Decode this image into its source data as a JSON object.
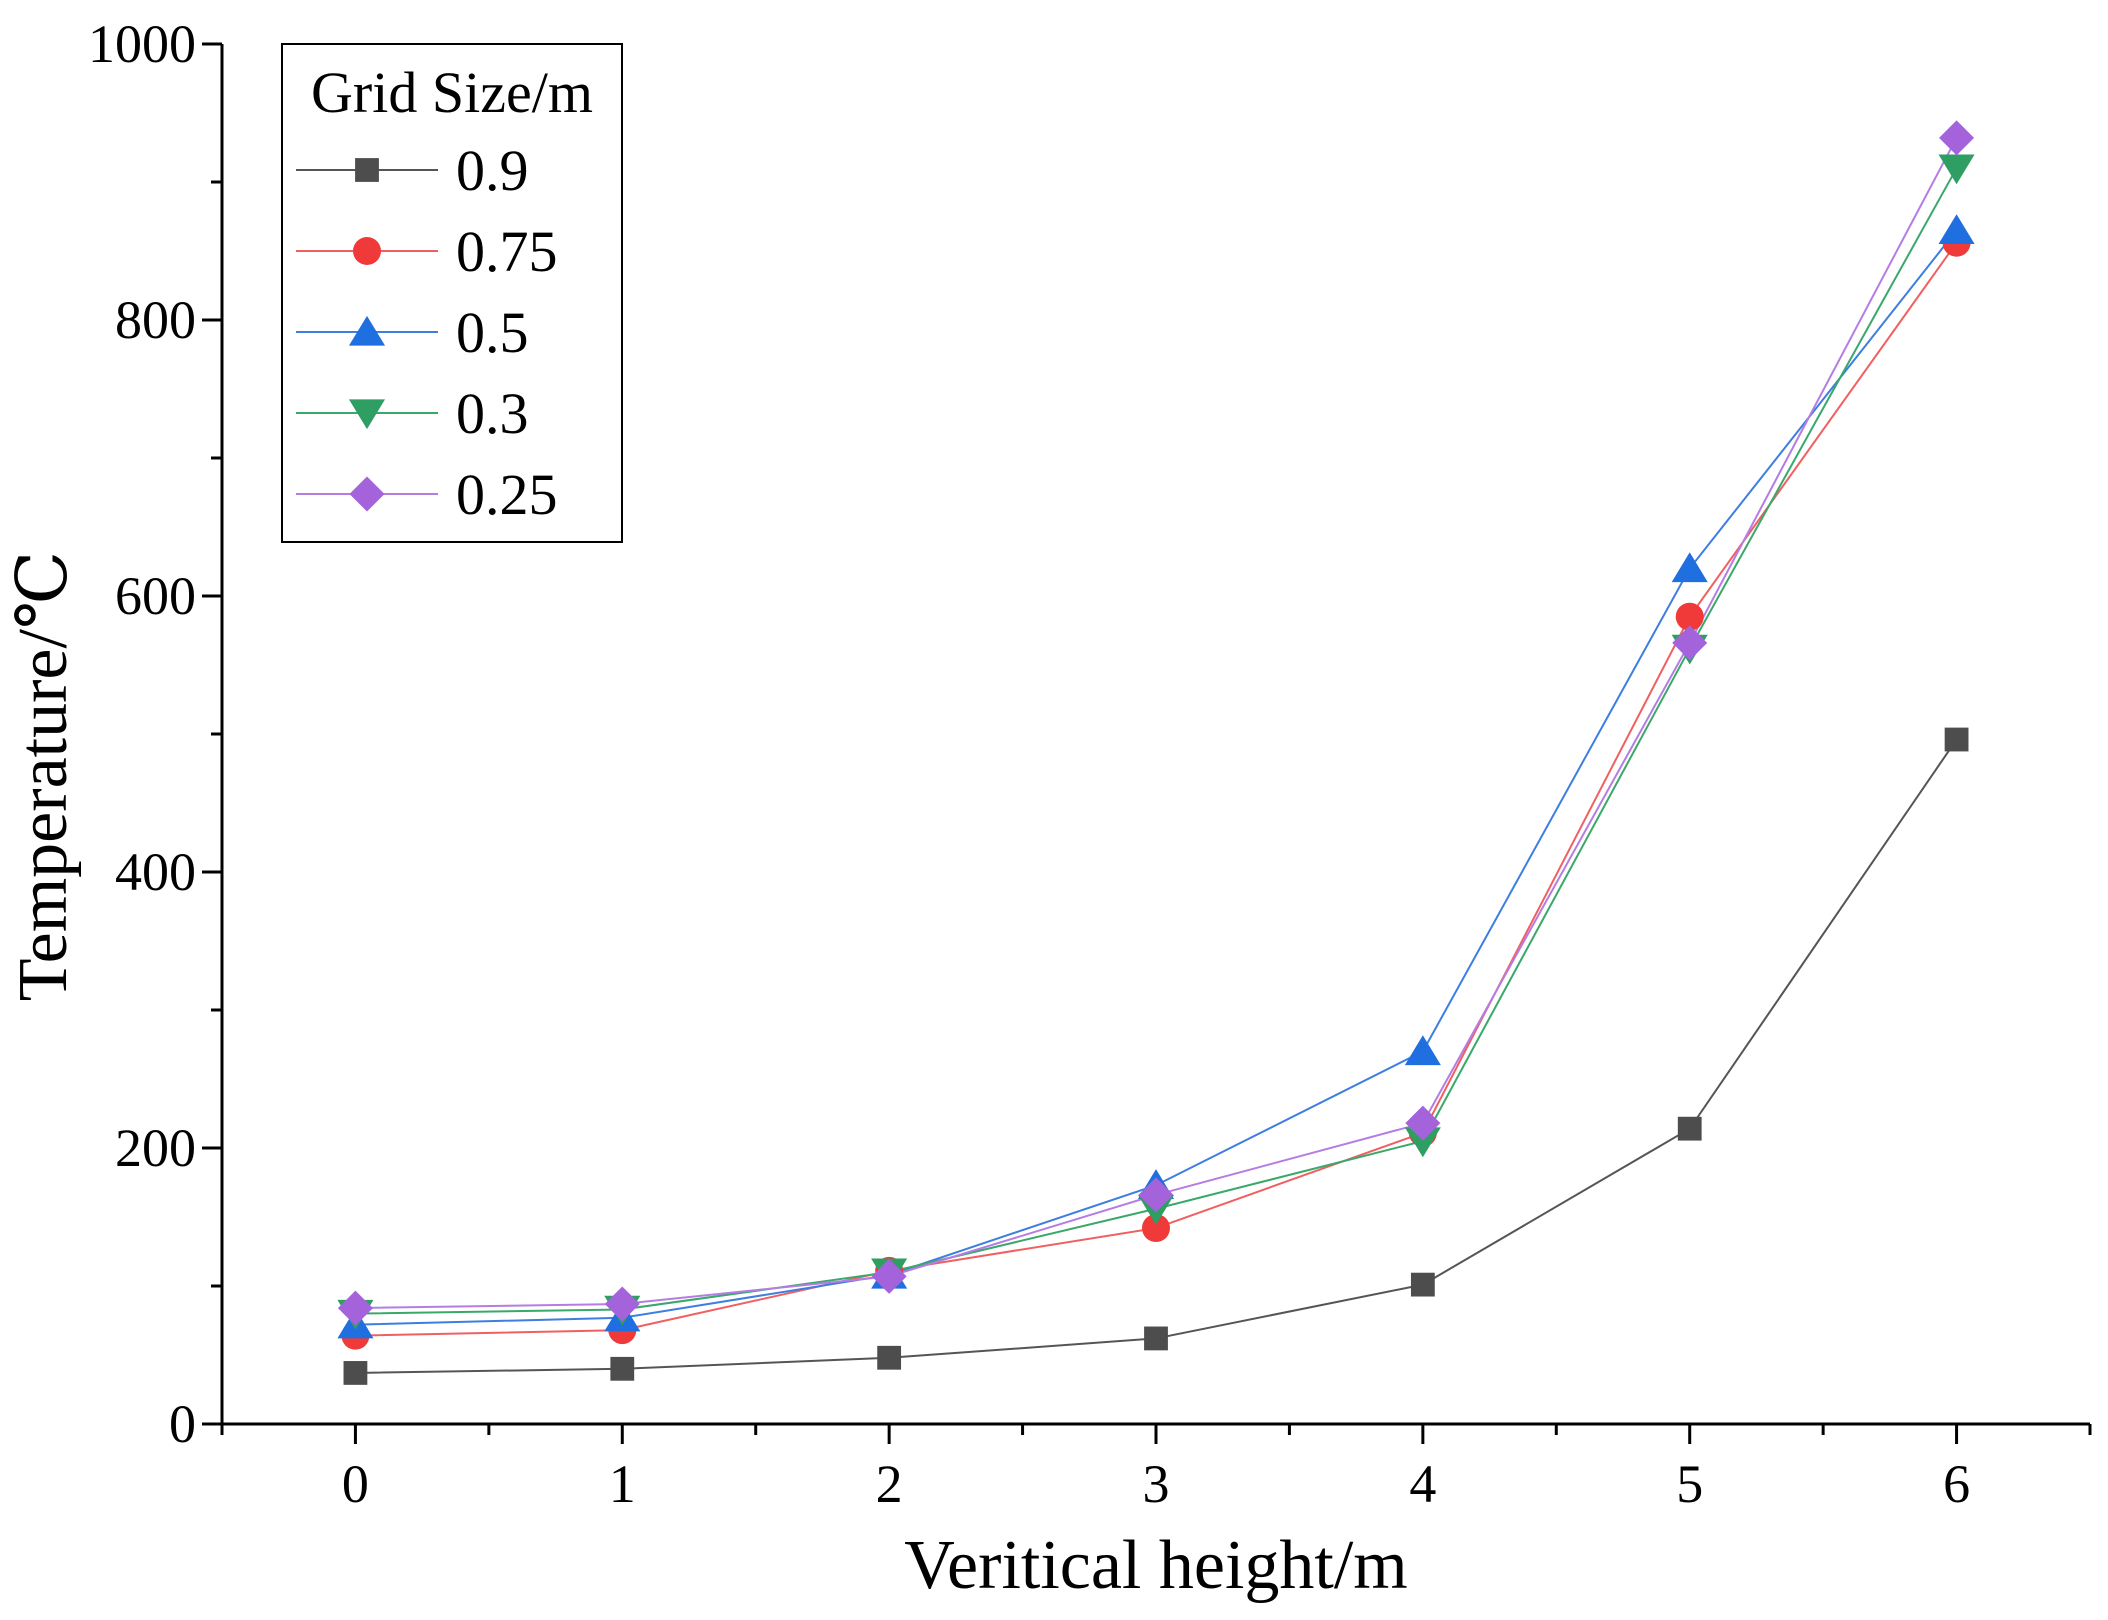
{
  "chart_data": {
    "type": "line",
    "title": "",
    "xlabel": "Veritical height/m",
    "ylabel": "Temperature/℃",
    "x": [
      0,
      1,
      2,
      3,
      4,
      5,
      6
    ],
    "xlim": [
      -0.5,
      6.5
    ],
    "ylim": [
      0,
      1000
    ],
    "xticks": [
      0,
      1,
      2,
      3,
      4,
      5,
      6
    ],
    "yticks": [
      0,
      200,
      400,
      600,
      800,
      1000
    ],
    "grid": false,
    "legend": {
      "title": "Grid Size/m",
      "placement": "top-left"
    },
    "series": [
      {
        "name": "0.9",
        "marker": "square",
        "color": "#4d4d4d",
        "line_color": "#555555",
        "values": [
          37,
          40,
          48,
          62,
          101,
          214,
          496
        ]
      },
      {
        "name": "0.75",
        "marker": "circle",
        "color": "#f03a3a",
        "line_color": "#f06060",
        "values": [
          64,
          68,
          111,
          142,
          211,
          585,
          856
        ]
      },
      {
        "name": "0.5",
        "marker": "triangle-up",
        "color": "#1f6fe0",
        "line_color": "#3d7ee0",
        "values": [
          72,
          77,
          108,
          173,
          270,
          620,
          865
        ]
      },
      {
        "name": "0.3",
        "marker": "triangle-down",
        "color": "#2e9e62",
        "line_color": "#3aa86a",
        "values": [
          80,
          83,
          110,
          156,
          205,
          562,
          910
        ]
      },
      {
        "name": "0.25",
        "marker": "diamond",
        "color": "#a463db",
        "line_color": "#b57de3",
        "values": [
          84,
          87,
          107,
          166,
          218,
          566,
          932
        ]
      }
    ]
  }
}
